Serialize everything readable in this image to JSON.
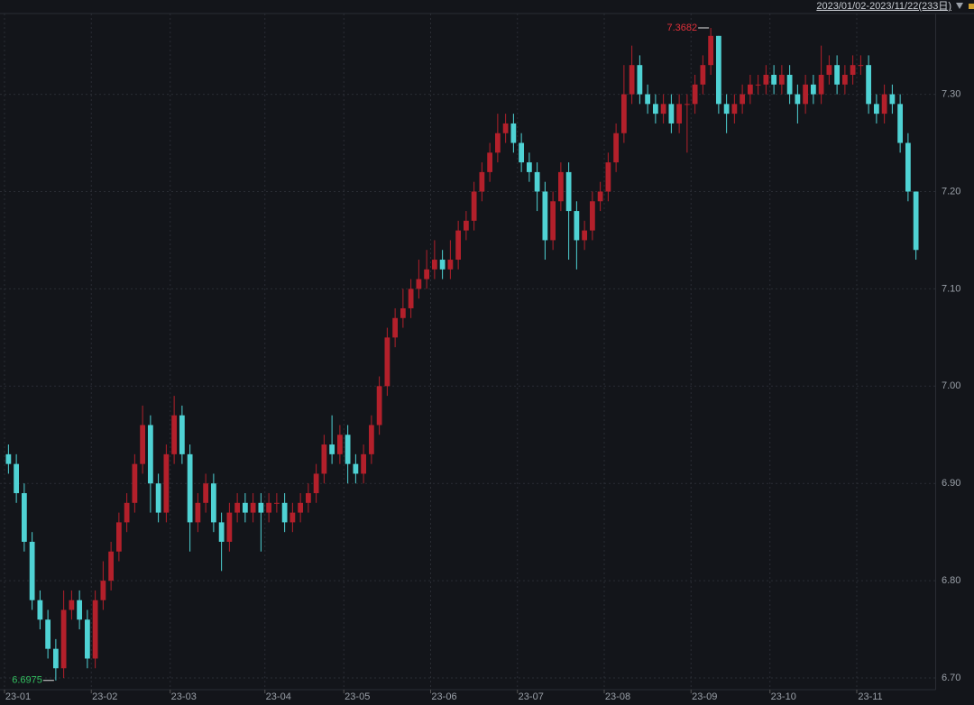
{
  "chart_data": {
    "type": "candlestick",
    "subtitle": "2023/01/02-2023/11/22(233日)",
    "up_color": "#b3202b",
    "down_color": "#4fd2d4",
    "max_color": "#e0303a",
    "min_color": "#33c060",
    "grid": true,
    "xlim": [
      0,
      118
    ],
    "xticks": [
      {
        "value": 0,
        "label": "23-01"
      },
      {
        "value": 11,
        "label": "23-02"
      },
      {
        "value": 21,
        "label": "23-03"
      },
      {
        "value": 33,
        "label": "23-04"
      },
      {
        "value": 43,
        "label": "23-05"
      },
      {
        "value": 54,
        "label": "23-06"
      },
      {
        "value": 65,
        "label": "23-07"
      },
      {
        "value": 76,
        "label": "23-08"
      },
      {
        "value": 87,
        "label": "23-09"
      },
      {
        "value": 97,
        "label": "23-10"
      },
      {
        "value": 108,
        "label": "23-11"
      }
    ],
    "ylim": [
      6.688,
      7.383
    ],
    "yticks": [
      {
        "value": 6.7,
        "label": "6.70"
      },
      {
        "value": 6.8,
        "label": "6.80"
      },
      {
        "value": 6.9,
        "label": "6.90"
      },
      {
        "value": 7.0,
        "label": "7.00"
      },
      {
        "value": 7.1,
        "label": "7.10"
      },
      {
        "value": 7.2,
        "label": "7.20"
      },
      {
        "value": 7.3,
        "label": "7.30"
      }
    ],
    "open": [
      6.93,
      6.92,
      6.89,
      6.84,
      6.78,
      6.76,
      6.73,
      6.71,
      6.77,
      6.78,
      6.76,
      6.72,
      6.78,
      6.8,
      6.83,
      6.86,
      6.88,
      6.92,
      6.96,
      6.9,
      6.87,
      6.93,
      6.97,
      6.93,
      6.86,
      6.88,
      6.9,
      6.86,
      6.84,
      6.87,
      6.88,
      6.87,
      6.88,
      6.87,
      6.88,
      6.88,
      6.86,
      6.87,
      6.88,
      6.89,
      6.91,
      6.94,
      6.93,
      6.95,
      6.92,
      6.91,
      6.93,
      6.96,
      7.0,
      7.05,
      7.07,
      7.08,
      7.1,
      7.11,
      7.12,
      7.13,
      7.12,
      7.13,
      7.16,
      7.17,
      7.2,
      7.22,
      7.24,
      7.26,
      7.27,
      7.25,
      7.23,
      7.22,
      7.2,
      7.15,
      7.19,
      7.22,
      7.18,
      7.15,
      7.16,
      7.19,
      7.2,
      7.23,
      7.26,
      7.3,
      7.33,
      7.3,
      7.29,
      7.28,
      7.29,
      7.27,
      7.29,
      7.29,
      7.31,
      7.33,
      7.36,
      7.29,
      7.28,
      7.29,
      7.3,
      7.31,
      7.31,
      7.32,
      7.31,
      7.32,
      7.3,
      7.29,
      7.31,
      7.3,
      7.32,
      7.33,
      7.31,
      7.32,
      7.33,
      7.33,
      7.29,
      7.28,
      7.3,
      7.29,
      7.25,
      7.2
    ],
    "high": [
      6.94,
      6.93,
      6.9,
      6.85,
      6.79,
      6.77,
      6.74,
      6.79,
      6.79,
      6.79,
      6.77,
      6.79,
      6.82,
      6.84,
      6.87,
      6.89,
      6.93,
      6.98,
      6.97,
      6.91,
      6.94,
      6.99,
      6.98,
      6.94,
      6.89,
      6.91,
      6.91,
      6.87,
      6.88,
      6.89,
      6.89,
      6.89,
      6.89,
      6.89,
      6.89,
      6.89,
      6.88,
      6.89,
      6.9,
      6.92,
      6.95,
      6.97,
      6.96,
      6.96,
      6.93,
      6.94,
      6.97,
      7.01,
      7.06,
      7.08,
      7.1,
      7.11,
      7.13,
      7.14,
      7.15,
      7.14,
      7.15,
      7.17,
      7.18,
      7.21,
      7.23,
      7.25,
      7.28,
      7.28,
      7.28,
      7.26,
      7.24,
      7.23,
      7.21,
      7.2,
      7.23,
      7.23,
      7.19,
      7.17,
      7.2,
      7.21,
      7.24,
      7.27,
      7.33,
      7.35,
      7.34,
      7.31,
      7.3,
      7.3,
      7.3,
      7.3,
      7.3,
      7.32,
      7.34,
      7.3682,
      7.36,
      7.3,
      7.3,
      7.31,
      7.32,
      7.32,
      7.33,
      7.33,
      7.33,
      7.33,
      7.31,
      7.32,
      7.32,
      7.35,
      7.34,
      7.34,
      7.33,
      7.34,
      7.34,
      7.34,
      7.3,
      7.31,
      7.31,
      7.3,
      7.26,
      7.2
    ],
    "low": [
      6.91,
      6.88,
      6.83,
      6.77,
      6.75,
      6.72,
      6.6975,
      6.7,
      6.76,
      6.75,
      6.71,
      6.71,
      6.77,
      6.79,
      6.82,
      6.85,
      6.87,
      6.91,
      6.87,
      6.86,
      6.86,
      6.92,
      6.92,
      6.83,
      6.85,
      6.87,
      6.85,
      6.81,
      6.83,
      6.86,
      6.86,
      6.86,
      6.83,
      6.86,
      6.87,
      6.85,
      6.85,
      6.86,
      6.87,
      6.88,
      6.9,
      6.92,
      6.92,
      6.9,
      6.9,
      6.9,
      6.92,
      6.95,
      6.99,
      7.04,
      7.06,
      7.07,
      7.09,
      7.1,
      7.11,
      7.11,
      7.11,
      7.12,
      7.15,
      7.16,
      7.19,
      7.21,
      7.23,
      7.25,
      7.24,
      7.22,
      7.21,
      7.18,
      7.13,
      7.14,
      7.18,
      7.13,
      7.12,
      7.14,
      7.15,
      7.18,
      7.19,
      7.22,
      7.25,
      7.29,
      7.29,
      7.28,
      7.27,
      7.27,
      7.26,
      7.26,
      7.24,
      7.28,
      7.3,
      7.32,
      7.28,
      7.26,
      7.27,
      7.28,
      7.29,
      7.3,
      7.3,
      7.3,
      7.3,
      7.29,
      7.27,
      7.28,
      7.29,
      7.29,
      7.31,
      7.3,
      7.3,
      7.31,
      7.32,
      7.28,
      7.27,
      7.27,
      7.28,
      7.24,
      7.19,
      7.13
    ],
    "close": [
      6.92,
      6.89,
      6.84,
      6.78,
      6.76,
      6.73,
      6.71,
      6.77,
      6.78,
      6.76,
      6.72,
      6.78,
      6.8,
      6.83,
      6.86,
      6.88,
      6.92,
      6.96,
      6.9,
      6.87,
      6.93,
      6.97,
      6.93,
      6.86,
      6.88,
      6.9,
      6.86,
      6.84,
      6.87,
      6.88,
      6.87,
      6.88,
      6.87,
      6.88,
      6.88,
      6.86,
      6.87,
      6.88,
      6.89,
      6.91,
      6.94,
      6.93,
      6.95,
      6.92,
      6.91,
      6.93,
      6.96,
      7.0,
      7.05,
      7.07,
      7.08,
      7.1,
      7.11,
      7.12,
      7.13,
      7.12,
      7.13,
      7.16,
      7.17,
      7.2,
      7.22,
      7.24,
      7.26,
      7.27,
      7.25,
      7.23,
      7.22,
      7.2,
      7.15,
      7.19,
      7.22,
      7.18,
      7.15,
      7.16,
      7.19,
      7.2,
      7.23,
      7.26,
      7.3,
      7.33,
      7.3,
      7.29,
      7.28,
      7.29,
      7.27,
      7.29,
      7.29,
      7.31,
      7.33,
      7.36,
      7.29,
      7.28,
      7.29,
      7.3,
      7.31,
      7.31,
      7.32,
      7.31,
      7.32,
      7.3,
      7.29,
      7.31,
      7.3,
      7.32,
      7.33,
      7.31,
      7.32,
      7.33,
      7.33,
      7.29,
      7.28,
      7.3,
      7.29,
      7.25,
      7.2,
      7.14
    ]
  }
}
